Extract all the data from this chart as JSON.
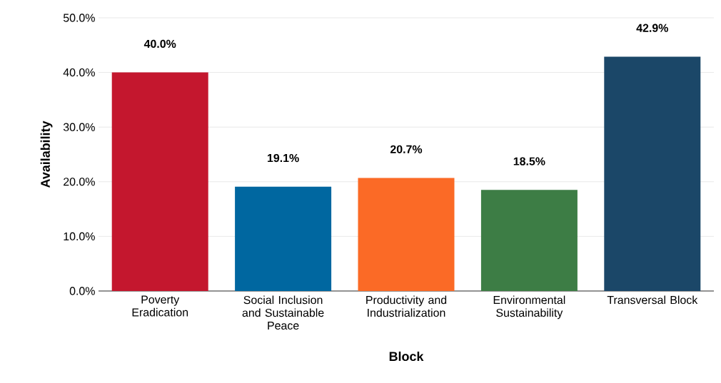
{
  "chart_data": {
    "type": "bar",
    "xlabel": "Block",
    "ylabel": "Availability",
    "categories": [
      "Poverty Eradication",
      "Social Inclusion and Sustainable Peace",
      "Productivity and Industrialization",
      "Environmental Sustainability",
      "Transversal Block"
    ],
    "values": [
      40.0,
      19.1,
      20.7,
      18.5,
      42.9
    ],
    "colors": [
      "#c4172e",
      "#0067a0",
      "#fb6a26",
      "#3d7d45",
      "#1b4768"
    ],
    "value_labels": [
      "40.0%",
      "19.1%",
      "20.7%",
      "18.5%",
      "42.9%"
    ],
    "ylim": [
      0,
      50
    ],
    "yticks": [
      {
        "value": 0,
        "label": "0.0%"
      },
      {
        "value": 10,
        "label": "10.0%"
      },
      {
        "value": 20,
        "label": "20.0%"
      },
      {
        "value": 30,
        "label": "30.0%"
      },
      {
        "value": 40,
        "label": "40.0%"
      },
      {
        "value": 50,
        "label": "50.0%"
      }
    ],
    "grid": "y"
  }
}
